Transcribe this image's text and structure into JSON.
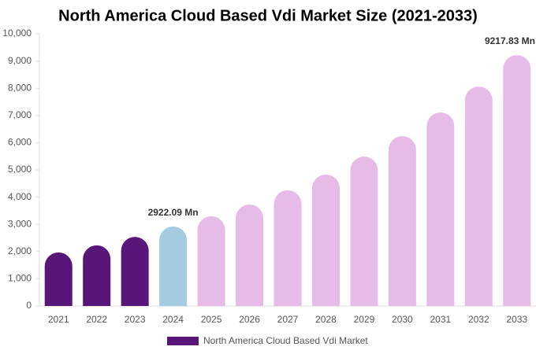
{
  "chart_data": {
    "type": "bar",
    "title": "North America Cloud Based Vdi Market Size (2021-2033)",
    "categories": [
      "2021",
      "2022",
      "2023",
      "2024",
      "2025",
      "2026",
      "2027",
      "2028",
      "2029",
      "2030",
      "2031",
      "2032",
      "2033"
    ],
    "series": [
      {
        "name": "North America Cloud Based Vdi Market",
        "color": "#58157a",
        "colors": [
          "#58157a",
          "#58157a",
          "#58157a",
          "#a4cbe0",
          "#e6bbe8",
          "#e6bbe8",
          "#e6bbe8",
          "#e6bbe8",
          "#e6bbe8",
          "#e6bbe8",
          "#e6bbe8",
          "#e6bbe8",
          "#e6bbe8"
        ],
        "values": [
          1970,
          2230,
          2540,
          2922.09,
          3300,
          3730,
          4250,
          4830,
          5490,
          6240,
          7110,
          8060,
          9217.83
        ],
        "value_labels": [
          null,
          null,
          null,
          "2922.09 Mn",
          null,
          null,
          null,
          null,
          null,
          null,
          null,
          null,
          "9217.83 Mn"
        ]
      }
    ],
    "ylim": [
      0,
      10000
    ],
    "yticks": [
      0,
      {
        "value": 1000,
        "label": "1,000"
      },
      {
        "value": 2000,
        "label": "2,000"
      },
      {
        "value": 3000,
        "label": "3,000"
      },
      {
        "value": 4000,
        "label": "4,000"
      },
      {
        "value": 5000,
        "label": "5,000"
      },
      {
        "value": 6000,
        "label": "6,000"
      },
      {
        "value": 7000,
        "label": "7,000"
      },
      {
        "value": 8000,
        "label": "8,000"
      },
      {
        "value": 9000,
        "label": "9,000"
      },
      {
        "value": 10000,
        "label": "10,000"
      }
    ],
    "grid": false
  }
}
